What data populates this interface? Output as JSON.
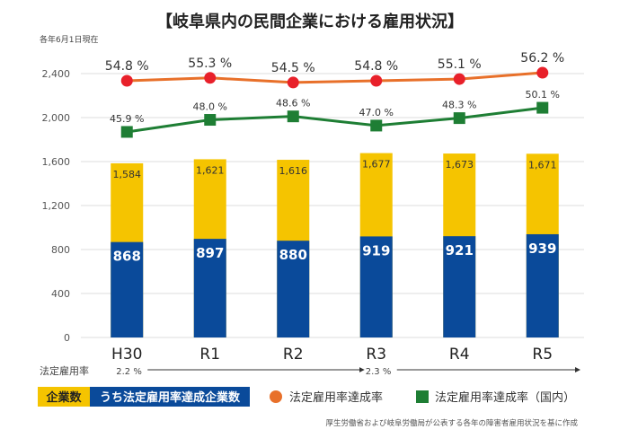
{
  "chart_data": {
    "type": "bar",
    "title": "【岐阜県内の民間企業における雇用状況】",
    "subtitle": "各年6月1日現在",
    "categories": [
      "H30",
      "R1",
      "R2",
      "R3",
      "R4",
      "R5"
    ],
    "ylim": [
      0,
      2800
    ],
    "yticks": [
      "0",
      "400",
      "800",
      "1,200",
      "1,600",
      "2,000",
      "2,400"
    ],
    "ytick_values": [
      0,
      400,
      800,
      1200,
      1600,
      2000,
      2400
    ],
    "series": [
      {
        "name": "企業数",
        "color": "#F5C400",
        "values": [
          1584,
          1621,
          1616,
          1677,
          1673,
          1671
        ],
        "labels": [
          "1,584",
          "1,621",
          "1,616",
          "1,677",
          "1,673",
          "1,671"
        ]
      },
      {
        "name": "うち法定雇用率達成企業数",
        "color": "#0A4A9A",
        "values": [
          868,
          897,
          880,
          919,
          921,
          939
        ],
        "labels": [
          "868",
          "897",
          "880",
          "919",
          "921",
          "939"
        ]
      }
    ],
    "lines": [
      {
        "name": "法定雇用率達成率",
        "color": "#E8702A",
        "marker_color": "#E8202A",
        "marker": "circle",
        "values": [
          54.8,
          55.3,
          54.5,
          54.8,
          55.1,
          56.2
        ],
        "labels": [
          "54.8 %",
          "55.3 %",
          "54.5 %",
          "54.8 %",
          "55.1 %",
          "56.2 %"
        ]
      },
      {
        "name": "法定雇用率達成率（国内）",
        "color": "#1E7E34",
        "marker_color": "#1E7E34",
        "marker": "square",
        "values": [
          45.9,
          48.0,
          48.6,
          47.0,
          48.3,
          50.1
        ],
        "labels": [
          "45.9 %",
          "48.0 %",
          "48.6 %",
          "47.0 %",
          "48.3 %",
          "50.1 %"
        ]
      }
    ],
    "legal_rate": {
      "label": "法定雇用率",
      "periods": [
        {
          "text": "2.2 %",
          "from": "H30",
          "to": "R3"
        },
        {
          "text": "2.3 %",
          "from": "R3",
          "to": "R5"
        }
      ]
    },
    "legend": {
      "bar1": "企業数",
      "bar2": "うち法定雇用率達成企業数",
      "line1": "法定雇用率達成率",
      "line2": "法定雇用率達成率（国内）"
    },
    "footer": "厚生労働省および岐阜労働局が公表する各年の障害者雇用状況を基に作成",
    "grid": "horizontal"
  }
}
